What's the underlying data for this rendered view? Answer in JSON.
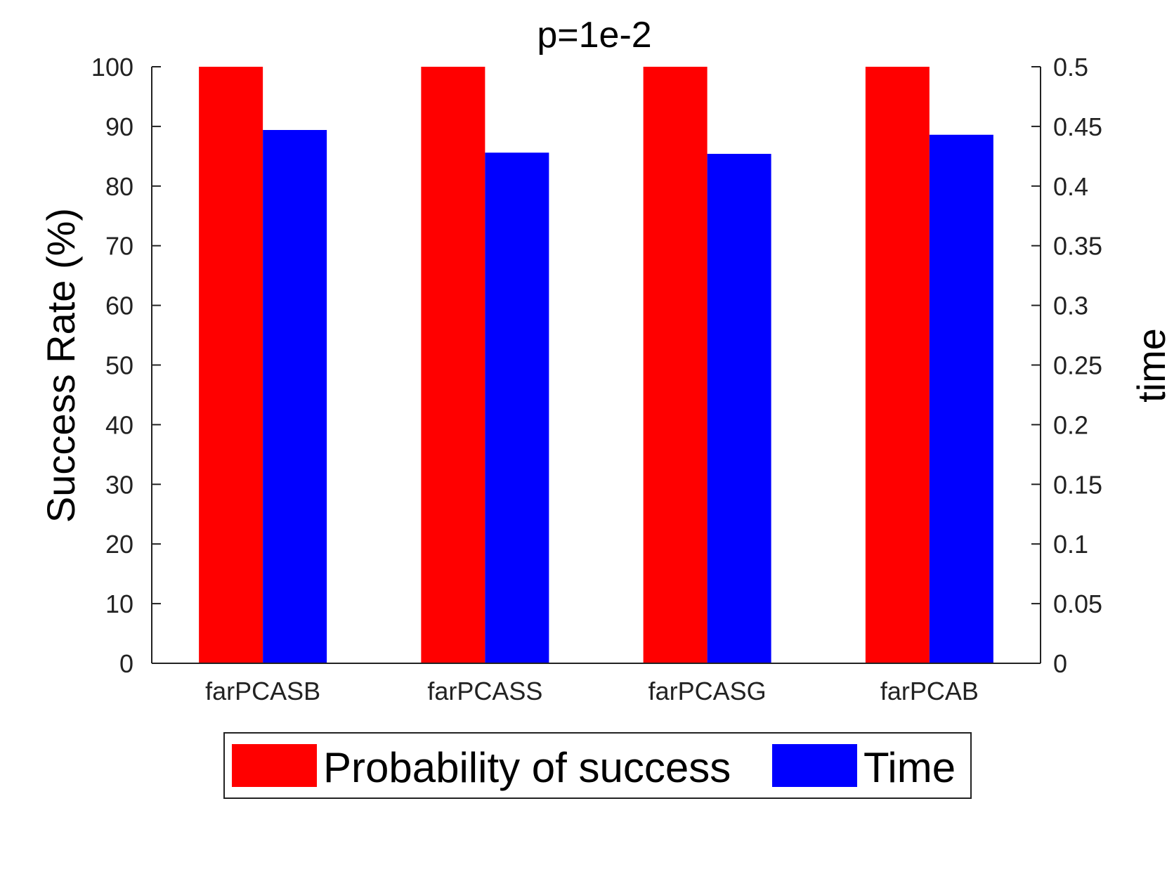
{
  "chart_data": {
    "type": "bar",
    "title": "p=1e-2",
    "categories": [
      "farPCASB",
      "farPCASS",
      "farPCASG",
      "farPCAB"
    ],
    "series": [
      {
        "name": "Probability of success",
        "axis": "left",
        "color": "#ff0000",
        "values": [
          100,
          100,
          100,
          100
        ]
      },
      {
        "name": "Time",
        "axis": "right",
        "color": "#0000ff",
        "values": [
          0.447,
          0.428,
          0.427,
          0.443
        ]
      }
    ],
    "ylabel_left": "Success Rate (%)",
    "ylabel_right": "time",
    "ylim_left": [
      0,
      100
    ],
    "ylim_right": [
      0,
      0.5
    ],
    "yticks_left": [
      "0",
      "10",
      "20",
      "30",
      "40",
      "50",
      "60",
      "70",
      "80",
      "90",
      "100"
    ],
    "yticks_right": [
      "0",
      "0.05",
      "0.1",
      "0.15",
      "0.2",
      "0.25",
      "0.3",
      "0.35",
      "0.4",
      "0.45",
      "0.5"
    ],
    "legend_position": "bottom",
    "grid": false
  }
}
